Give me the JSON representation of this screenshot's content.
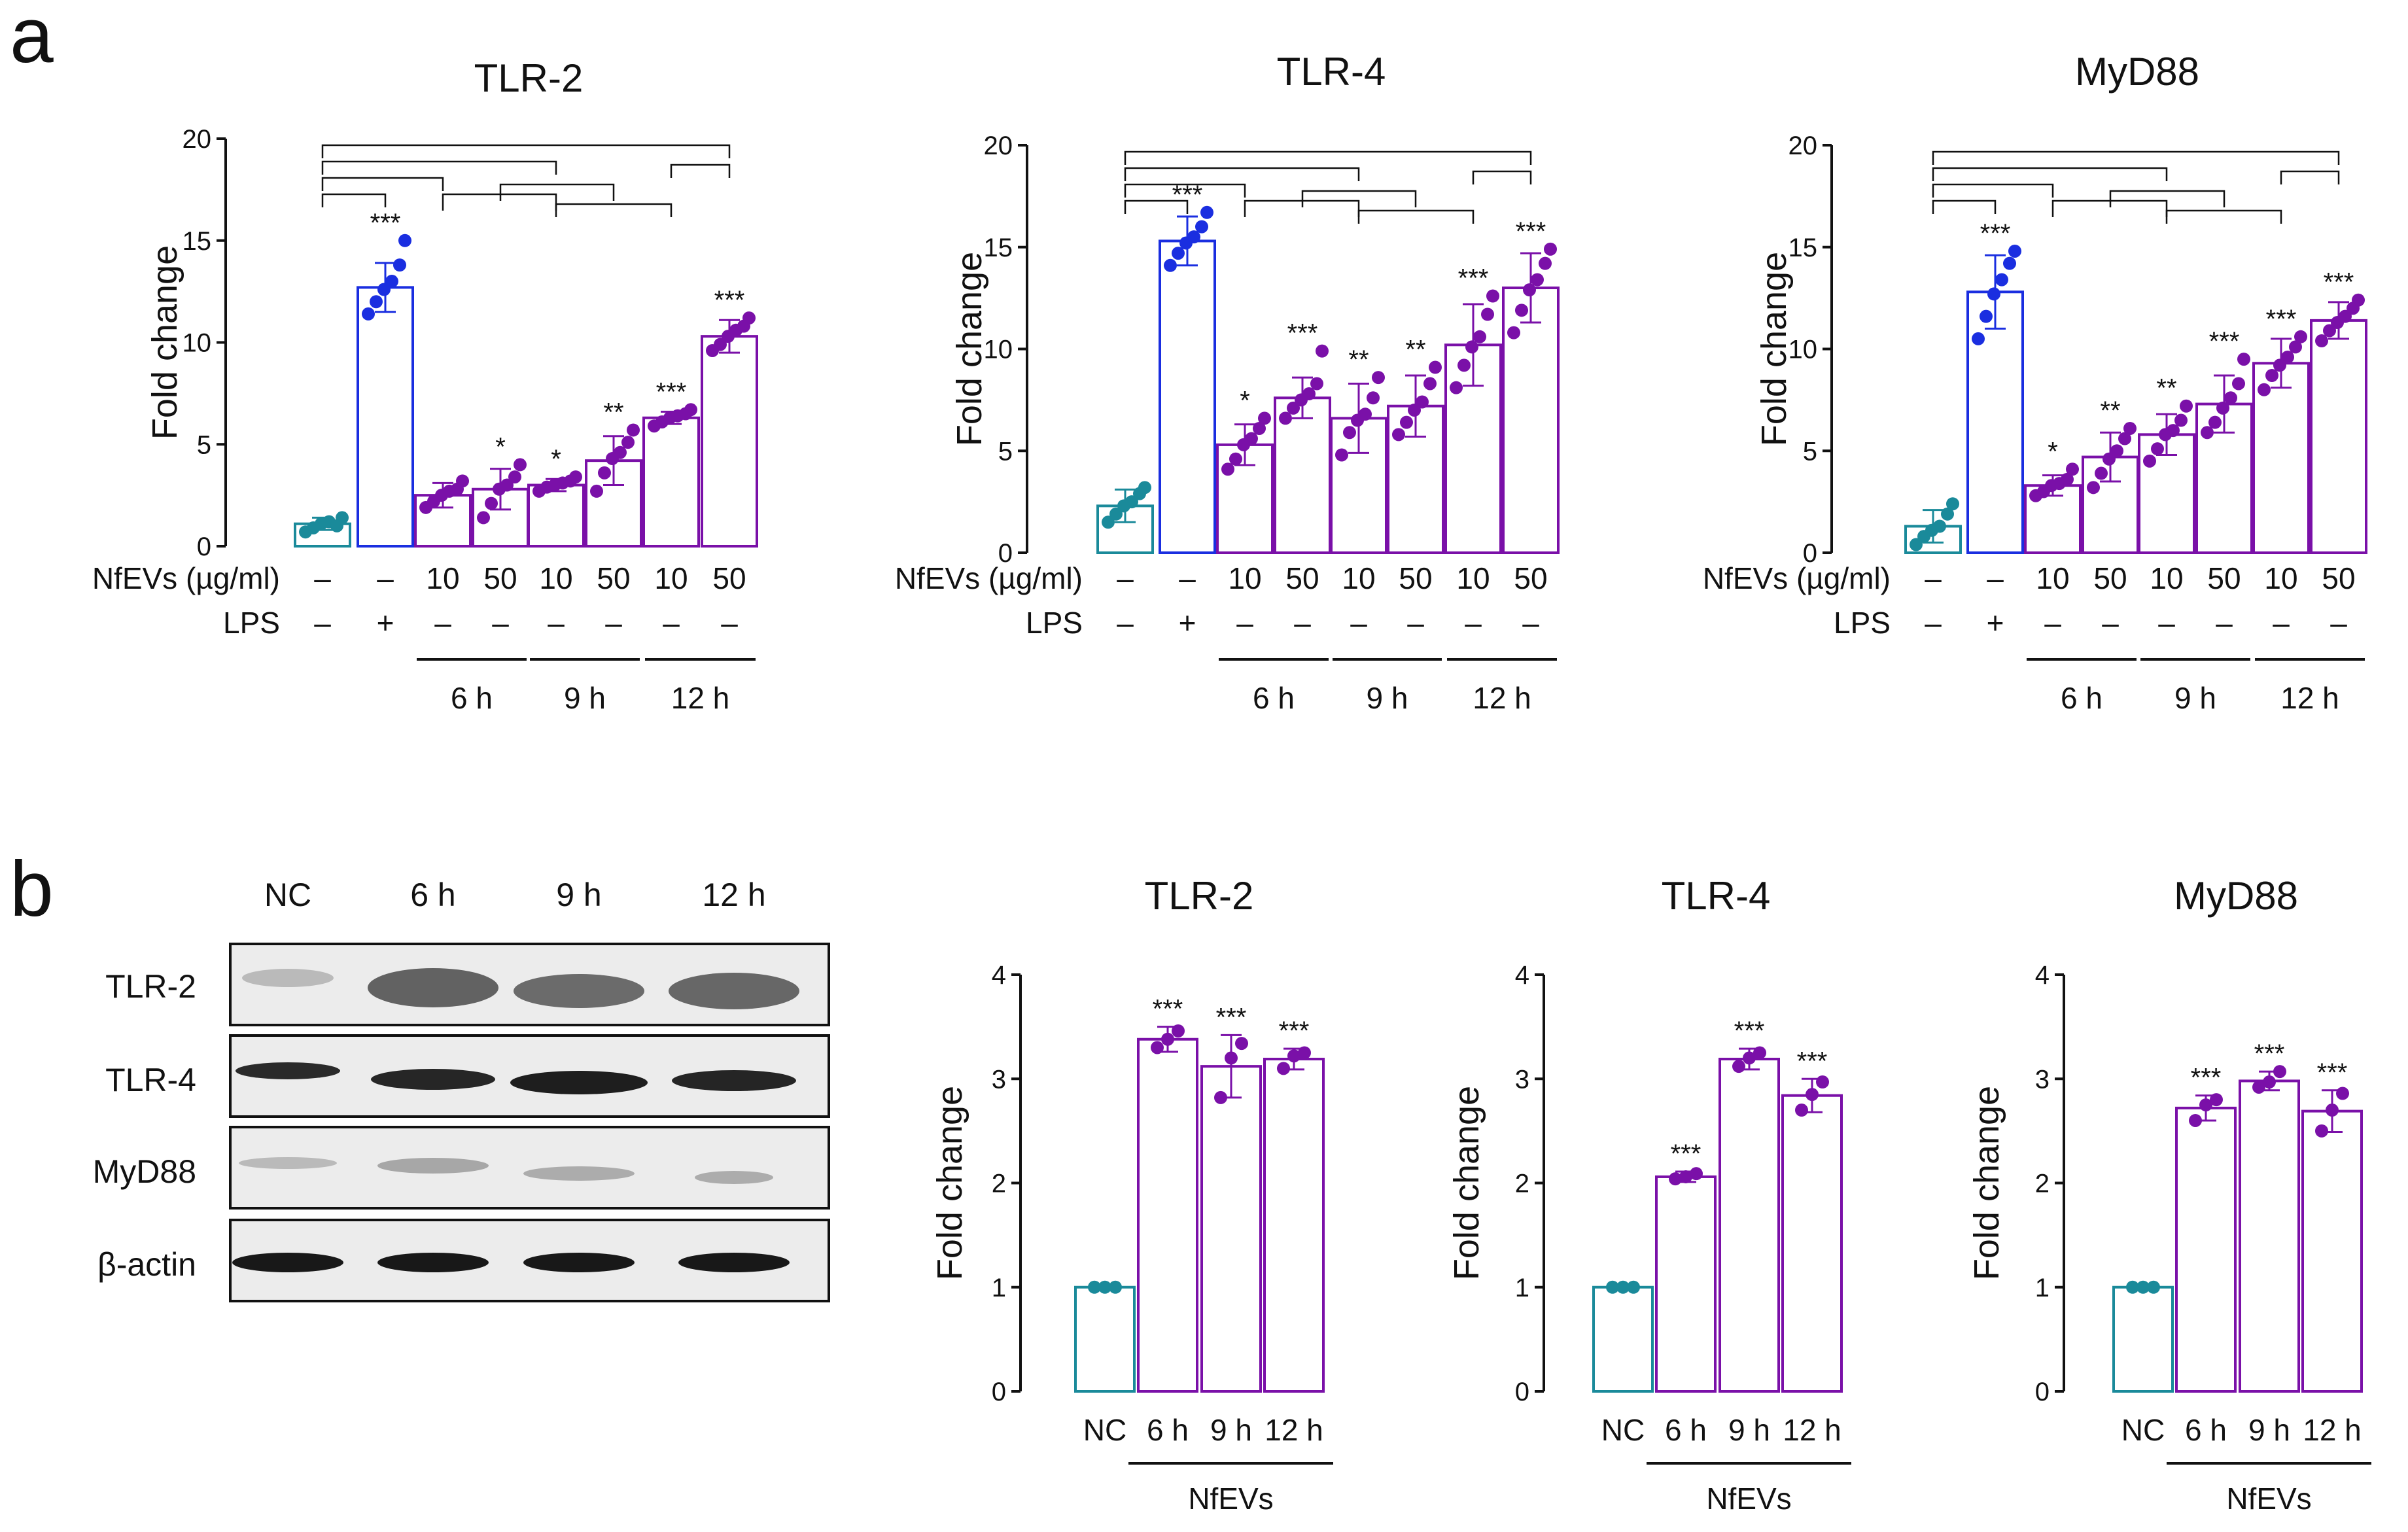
{
  "panel_labels": [
    "a",
    "b"
  ],
  "colors": {
    "nc": "#1a8a9a",
    "lps": "#1a2ee0",
    "nfevs": "#7a10a8",
    "axis": "#111111"
  },
  "panel_a": {
    "condition_row_labels": [
      "NfEVs (µg/ml)",
      "LPS"
    ],
    "nfevs_values": [
      "–",
      "–",
      "10",
      "50",
      "10",
      "50",
      "10",
      "50"
    ],
    "lps_values": [
      "–",
      "+",
      "–",
      "–",
      "–",
      "–",
      "–",
      "–"
    ],
    "time_labels": [
      "6 h",
      "9 h",
      "12 h"
    ]
  },
  "panel_b": {
    "blot": {
      "lanes": [
        "NC",
        "6 h",
        "9 h",
        "12 h"
      ],
      "rows": [
        "TLR-2",
        "TLR-4",
        "MyD88",
        "β-actin"
      ]
    },
    "group_label": "NfEVs"
  },
  "chart_data": [
    {
      "type": "bar",
      "panel": "a",
      "title": "TLR-2",
      "ylabel": "Fold change",
      "ylim": [
        0,
        20
      ],
      "yticks": [
        0,
        5,
        10,
        15,
        20
      ],
      "series": [
        {
          "name": "TLR-2",
          "values": [
            1.1,
            12.7,
            2.5,
            2.8,
            3.0,
            4.2,
            6.3,
            10.3
          ],
          "errors": [
            0.3,
            1.2,
            0.6,
            1.0,
            0.3,
            1.2,
            0.3,
            0.8
          ],
          "significance": [
            "",
            "***",
            "",
            "*",
            "*",
            "**",
            "***",
            "***"
          ],
          "points": [
            [
              0.7,
              0.9,
              1.1,
              1.2,
              1.0,
              1.4
            ],
            [
              11.4,
              12.0,
              12.6,
              13.0,
              13.8,
              15.0
            ],
            [
              1.9,
              2.2,
              2.5,
              2.7,
              2.8,
              3.2
            ],
            [
              1.4,
              2.1,
              2.8,
              3.0,
              3.4,
              4.0
            ],
            [
              2.7,
              2.9,
              3.0,
              3.1,
              3.2,
              3.4
            ],
            [
              2.7,
              3.6,
              4.3,
              4.6,
              5.1,
              5.7
            ],
            [
              5.9,
              6.1,
              6.3,
              6.4,
              6.5,
              6.7
            ],
            [
              9.6,
              9.9,
              10.3,
              10.6,
              10.8,
              11.2
            ]
          ]
        }
      ]
    },
    {
      "type": "bar",
      "panel": "a",
      "title": "TLR-4",
      "ylabel": "Fold change",
      "ylim": [
        0,
        20
      ],
      "yticks": [
        0,
        5,
        10,
        15,
        20
      ],
      "series": [
        {
          "name": "TLR-4",
          "values": [
            2.3,
            15.3,
            5.3,
            7.6,
            6.6,
            7.2,
            10.2,
            13.0
          ],
          "errors": [
            0.8,
            1.2,
            1.0,
            1.0,
            1.7,
            1.5,
            2.0,
            1.7
          ],
          "significance": [
            "",
            "***",
            "*",
            "***",
            "**",
            "**",
            "***",
            "***"
          ],
          "points": [
            [
              1.5,
              1.9,
              2.3,
              2.5,
              2.9,
              3.2
            ],
            [
              14.1,
              14.7,
              15.2,
              15.5,
              16.0,
              16.7
            ],
            [
              4.1,
              4.6,
              5.3,
              5.6,
              6.1,
              6.6
            ],
            [
              6.6,
              7.1,
              7.5,
              7.8,
              8.3,
              9.9
            ],
            [
              4.8,
              5.9,
              6.5,
              6.8,
              7.6,
              8.6
            ],
            [
              5.8,
              6.4,
              7.0,
              7.4,
              8.3,
              9.1
            ],
            [
              8.1,
              9.2,
              10.1,
              10.6,
              11.7,
              12.6
            ],
            [
              10.8,
              11.9,
              12.9,
              13.4,
              14.2,
              14.9
            ]
          ]
        }
      ]
    },
    {
      "type": "bar",
      "panel": "a",
      "title": "MyD88",
      "ylabel": "Fold change",
      "ylim": [
        0,
        20
      ],
      "yticks": [
        0,
        5,
        10,
        15,
        20
      ],
      "series": [
        {
          "name": "MyD88",
          "values": [
            1.3,
            12.8,
            3.3,
            4.7,
            5.8,
            7.3,
            9.3,
            11.4
          ],
          "errors": [
            0.8,
            1.8,
            0.5,
            1.2,
            1.0,
            1.4,
            1.2,
            0.9
          ],
          "significance": [
            "",
            "***",
            "*",
            "**",
            "**",
            "***",
            "***",
            "***"
          ],
          "points": [
            [
              0.4,
              0.8,
              1.1,
              1.3,
              1.9,
              2.4
            ],
            [
              10.5,
              11.6,
              12.7,
              13.4,
              14.2,
              14.8
            ],
            [
              2.8,
              3.0,
              3.3,
              3.4,
              3.6,
              4.1
            ],
            [
              3.2,
              3.9,
              4.6,
              5.0,
              5.6,
              6.1
            ],
            [
              4.5,
              5.1,
              5.8,
              6.0,
              6.5,
              7.2
            ],
            [
              5.9,
              6.4,
              7.1,
              7.6,
              8.3,
              9.5
            ],
            [
              8.0,
              8.7,
              9.2,
              9.6,
              10.1,
              10.6
            ],
            [
              10.4,
              10.9,
              11.3,
              11.6,
              12.0,
              12.4
            ]
          ]
        }
      ]
    },
    {
      "type": "bar",
      "panel": "b",
      "title": "TLR-2",
      "ylabel": "Fold change",
      "ylim": [
        0,
        4
      ],
      "yticks": [
        0,
        1,
        2,
        3,
        4
      ],
      "categories": [
        "NC",
        "6 h",
        "9 h",
        "12 h"
      ],
      "series": [
        {
          "name": "TLR-2",
          "values": [
            1.0,
            3.38,
            3.12,
            3.19
          ],
          "errors": [
            0.0,
            0.12,
            0.3,
            0.1
          ],
          "significance": [
            "",
            "***",
            "***",
            "***"
          ],
          "points": [
            [
              1.0,
              1.0,
              1.0
            ],
            [
              3.3,
              3.38,
              3.46
            ],
            [
              2.82,
              3.2,
              3.34
            ],
            [
              3.1,
              3.22,
              3.25
            ]
          ]
        }
      ]
    },
    {
      "type": "bar",
      "panel": "b",
      "title": "TLR-4",
      "ylabel": "Fold change",
      "ylim": [
        0,
        4
      ],
      "yticks": [
        0,
        1,
        2,
        3,
        4
      ],
      "categories": [
        "NC",
        "6 h",
        "9 h",
        "12 h"
      ],
      "series": [
        {
          "name": "TLR-4",
          "values": [
            1.0,
            2.06,
            3.19,
            2.84
          ],
          "errors": [
            0.0,
            0.05,
            0.1,
            0.16
          ],
          "significance": [
            "",
            "***",
            "***",
            "***"
          ],
          "points": [
            [
              1.0,
              1.0,
              1.0
            ],
            [
              2.04,
              2.06,
              2.09
            ],
            [
              3.12,
              3.2,
              3.25
            ],
            [
              2.7,
              2.85,
              2.97
            ]
          ]
        }
      ]
    },
    {
      "type": "bar",
      "panel": "b",
      "title": "MyD88",
      "ylabel": "Fold change",
      "ylim": [
        0,
        4
      ],
      "yticks": [
        0,
        1,
        2,
        3,
        4
      ],
      "categories": [
        "NC",
        "6 h",
        "9 h",
        "12 h"
      ],
      "series": [
        {
          "name": "MyD88",
          "values": [
            1.0,
            2.72,
            2.98,
            2.69
          ],
          "errors": [
            0.0,
            0.12,
            0.09,
            0.2
          ],
          "significance": [
            "",
            "***",
            "***",
            "***"
          ],
          "points": [
            [
              1.0,
              1.0,
              1.0
            ],
            [
              2.6,
              2.75,
              2.8
            ],
            [
              2.92,
              2.97,
              3.07
            ],
            [
              2.5,
              2.7,
              2.86
            ]
          ]
        }
      ]
    }
  ]
}
